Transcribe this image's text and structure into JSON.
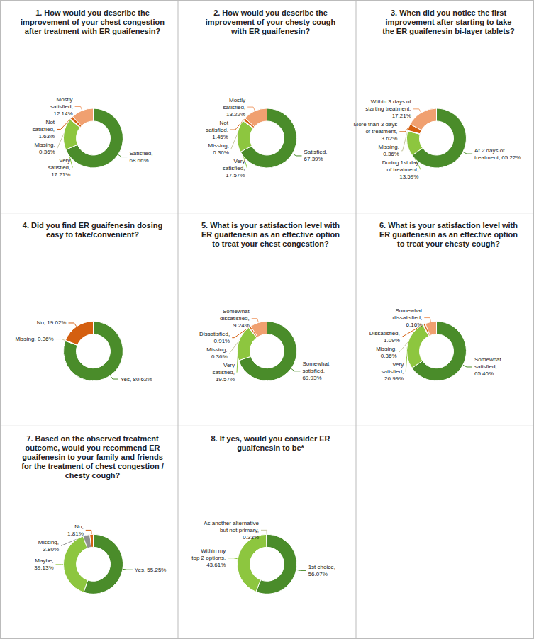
{
  "chart_data": [
    {
      "type": "pie",
      "title": "1. How would you describe the\nimprovement of your chest congestion\nafter treatment with ER guaifenesin?",
      "categories": [
        "Satisfied,\n68.66%",
        "Very\nsatisfied,\n17.21%",
        "Missing,\n0.36%",
        "Not\nsatisfied,\n1.63%",
        "Mostly\nsatisfied,\n12.14%"
      ],
      "values": [
        68.66,
        17.21,
        0.36,
        1.63,
        12.14
      ],
      "colors": [
        "#4a8c2a",
        "#8dc63f",
        "#c8c8a0",
        "#d45f10",
        "#f0a070"
      ]
    },
    {
      "type": "pie",
      "title": "2. How would you describe the\nimprovement of your chesty cough\nwith ER guaifenesin?",
      "categories": [
        "Satisfied,\n67.39%",
        "Very\nsatisfied,\n17.57%",
        "Missing,\n0.36%",
        "Not\nsatisfied,\n1.45%",
        "Mostly\nsatisfied,\n13.22%"
      ],
      "values": [
        67.39,
        17.57,
        0.36,
        1.45,
        13.22
      ],
      "colors": [
        "#4a8c2a",
        "#8dc63f",
        "#c8c8a0",
        "#d45f10",
        "#f0a070"
      ]
    },
    {
      "type": "pie",
      "title": "3. When did you notice the first\nimprovement after starting to take\nthe ER guaifenesin bi-layer tablets?",
      "categories": [
        "At 2 days of\ntreatment, 65.22%",
        "During 1st day\nof treatment,\n13.59%",
        "Missing,\n0.36%",
        "More than 3 days\nof treatment,\n3.62%",
        "Within 3 days of\nstarting treatment,\n17.21%"
      ],
      "values": [
        65.22,
        13.59,
        0.36,
        3.62,
        17.21
      ],
      "colors": [
        "#4a8c2a",
        "#8dc63f",
        "#c8c8a0",
        "#d45f10",
        "#f0a070"
      ]
    },
    {
      "type": "pie",
      "title": "4. Did you find ER guaifenesin dosing\neasy to take/convenient?",
      "categories": [
        "Yes, 80.62%",
        "Missing, 0.36%",
        "No, 19.02%"
      ],
      "values": [
        80.62,
        0.36,
        19.02
      ],
      "colors": [
        "#4a8c2a",
        "#c8c8a0",
        "#d45f10"
      ]
    },
    {
      "type": "pie",
      "title": "5. What is your satisfaction level with\nER guaifenesin as an effective option\nto treat your chest congestion?",
      "categories": [
        "Somewhat\nsatisfied,\n69.93%",
        "Very\nsatisfied,\n19.57%",
        "Missing,\n0.36%",
        "Dissatisfied,\n0.91%",
        "Somewhat\ndissatisfied,\n9.24%"
      ],
      "values": [
        69.93,
        19.57,
        0.36,
        0.91,
        9.24
      ],
      "colors": [
        "#4a8c2a",
        "#8dc63f",
        "#c8c8a0",
        "#d45f10",
        "#f0a070"
      ]
    },
    {
      "type": "pie",
      "title": "6. What is your satisfaction level with\nER guaifenesin as an effective option\nto treat your chesty cough?",
      "categories": [
        "Somewhat\nsatisfied,\n65.40%",
        "Very\nsatisfied,\n26.99%",
        "Missing,\n0.36%",
        "Dissatisfied,\n1.09%",
        "Somewhat\ndissatisfied,\n6.16%"
      ],
      "values": [
        65.4,
        26.99,
        0.36,
        1.09,
        6.16
      ],
      "colors": [
        "#4a8c2a",
        "#8dc63f",
        "#c8c8a0",
        "#d45f10",
        "#f0a070"
      ]
    },
    {
      "type": "pie",
      "title": "7. Based on the observed treatment\noutcome, would you recommend ER\nguaifenesin to your family and friends\nfor the treatment of chest congestion /\nchesty cough?",
      "categories": [
        "Yes, 55.25%",
        "Maybe,\n39.13%",
        "Missing,\n3.80%",
        "No,\n1.81%"
      ],
      "values": [
        55.25,
        39.13,
        3.8,
        1.81
      ],
      "colors": [
        "#4a8c2a",
        "#8dc63f",
        "#909090",
        "#d45f10"
      ]
    },
    {
      "type": "pie",
      "title": "8. If yes, would you consider ER\nguaifenesin to be*",
      "categories": [
        "1st choice,\n56.07%",
        "Within my\ntop 2 options,\n43.61%",
        "As another alternative\nbut not primary,\n0.33%"
      ],
      "values": [
        56.07,
        43.61,
        0.33
      ],
      "colors": [
        "#4a8c2a",
        "#8dc63f",
        "#c8c8a0"
      ]
    }
  ]
}
